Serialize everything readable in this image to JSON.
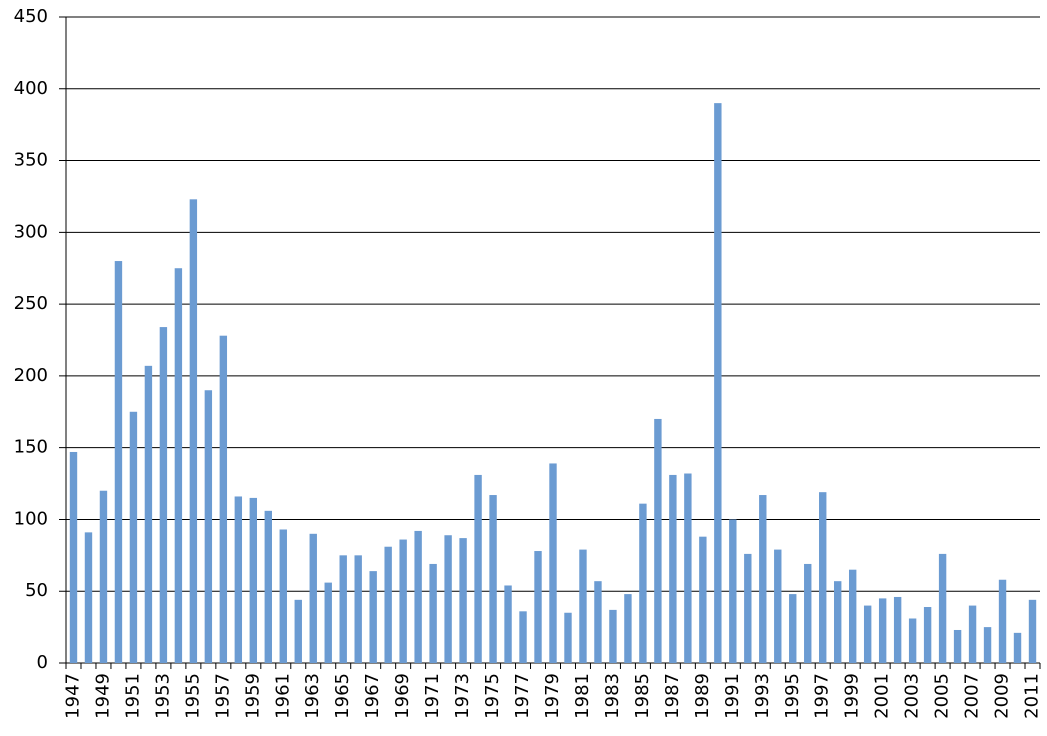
{
  "chart_data": {
    "type": "bar",
    "categories": [
      "1947",
      null,
      "1949",
      null,
      "1951",
      null,
      "1953",
      null,
      "1955",
      null,
      "1957",
      null,
      "1959",
      null,
      "1961",
      null,
      "1963",
      null,
      "1965",
      null,
      "1967",
      null,
      "1969",
      null,
      "1971",
      null,
      "1973",
      null,
      "1975",
      null,
      "1977",
      null,
      "1979",
      null,
      "1981",
      null,
      "1983",
      null,
      "1985",
      null,
      "1987",
      null,
      "1989",
      null,
      "1991",
      null,
      "1993",
      null,
      "1995",
      null,
      "1997",
      null,
      "1999",
      null,
      "2001",
      null,
      "2003",
      null,
      "2005",
      null,
      "2007",
      null,
      "2009",
      null,
      "2011"
    ],
    "values": [
      147,
      91,
      120,
      280,
      175,
      207,
      234,
      275,
      323,
      190,
      228,
      116,
      115,
      106,
      93,
      44,
      90,
      56,
      75,
      75,
      64,
      81,
      86,
      92,
      69,
      89,
      87,
      131,
      117,
      54,
      36,
      78,
      139,
      35,
      79,
      57,
      37,
      48,
      111,
      170,
      131,
      132,
      88,
      390,
      100,
      76,
      117,
      79,
      48,
      69,
      119,
      57,
      65,
      40,
      45,
      46,
      31,
      39,
      76,
      23,
      40,
      25,
      58,
      21,
      44
    ],
    "color": "#6b9bd2",
    "ylim": [
      0,
      450
    ],
    "yticks": [
      0,
      50,
      100,
      150,
      200,
      250,
      300,
      350,
      400,
      450
    ],
    "grid": true
  }
}
